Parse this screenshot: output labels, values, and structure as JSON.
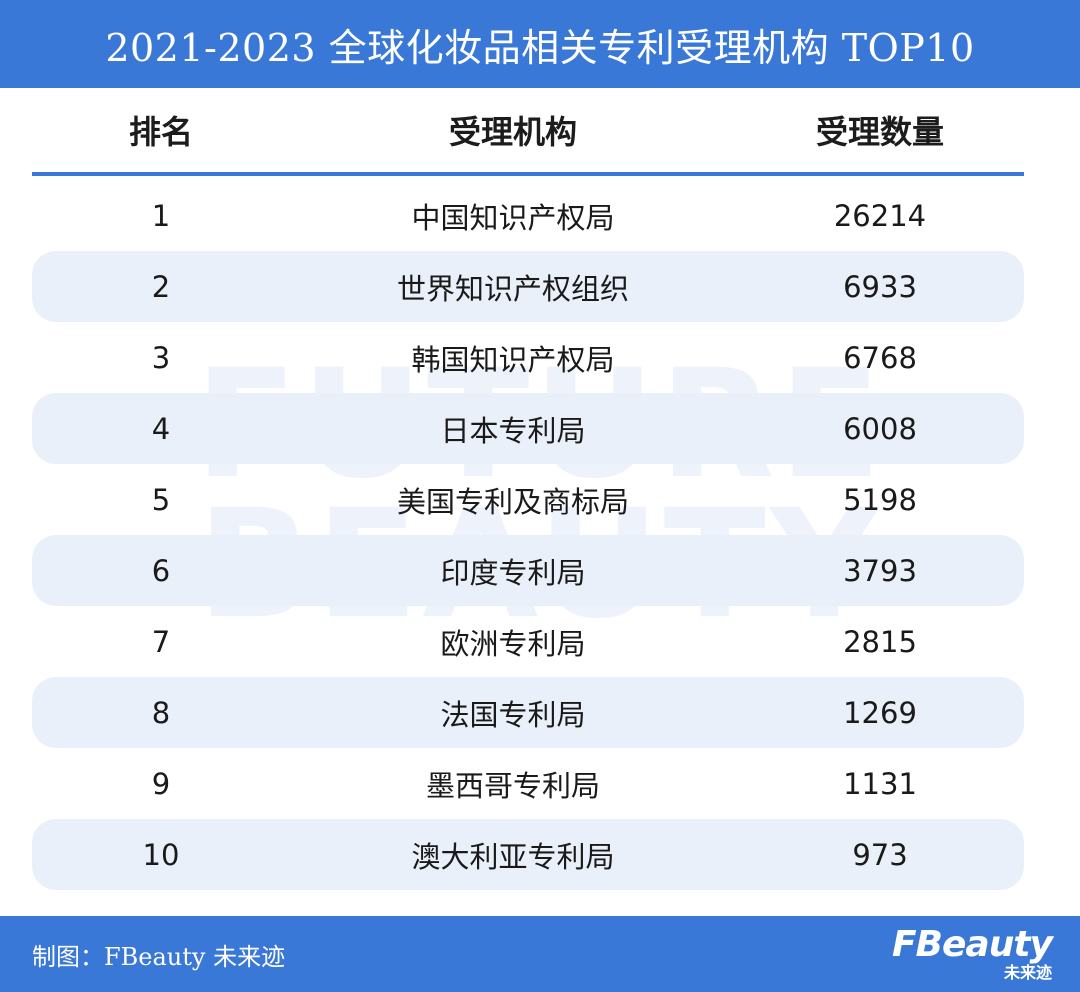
{
  "header": {
    "title": "2021-2023 全球化妆品相关专利受理机构 TOP10"
  },
  "watermark": {
    "line1": "FUTURE",
    "line2": "BEAUTY"
  },
  "table": {
    "columns": [
      "排名",
      "受理机构",
      "受理数量"
    ]
  },
  "chart_data": {
    "type": "table",
    "title": "2021-2023 全球化妆品相关专利受理机构 TOP10",
    "columns": [
      "排名",
      "受理机构",
      "受理数量"
    ],
    "rows": [
      {
        "rank": "1",
        "org": "中国知识产权局",
        "count": "26214"
      },
      {
        "rank": "2",
        "org": "世界知识产权组织",
        "count": "6933"
      },
      {
        "rank": "3",
        "org": "韩国知识产权局",
        "count": "6768"
      },
      {
        "rank": "4",
        "org": "日本专利局",
        "count": "6008"
      },
      {
        "rank": "5",
        "org": "美国专利及商标局",
        "count": "5198"
      },
      {
        "rank": "6",
        "org": "印度专利局",
        "count": "3793"
      },
      {
        "rank": "7",
        "org": "欧洲专利局",
        "count": "2815"
      },
      {
        "rank": "8",
        "org": "法国专利局",
        "count": "1269"
      },
      {
        "rank": "9",
        "org": "墨西哥专利局",
        "count": "1131"
      },
      {
        "rank": "10",
        "org": "澳大利亚专利局",
        "count": "973"
      }
    ]
  },
  "footer": {
    "credit": "制图：FBeauty 未来迹",
    "logo_word": "FBeauty",
    "logo_sub": "未来迹"
  },
  "colors": {
    "accent": "#3a78d8",
    "row_shade": "#eaf0fa",
    "watermark": "#eef2fb"
  }
}
